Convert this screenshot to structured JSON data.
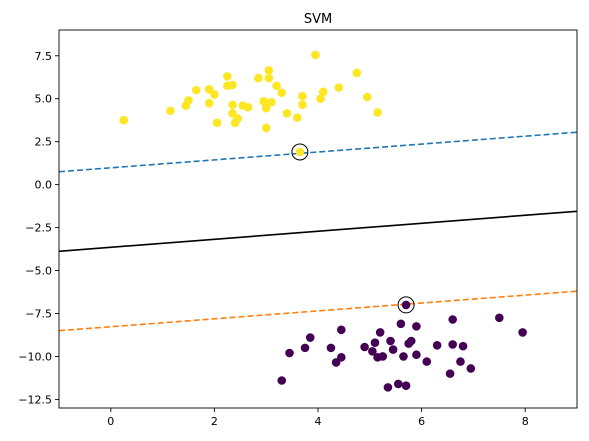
{
  "chart_data": {
    "type": "scatter",
    "title": "SVM",
    "xlabel": "",
    "ylabel": "",
    "xlim": [
      -1,
      9
    ],
    "ylim": [
      -13,
      9
    ],
    "xticks": [
      0,
      2,
      4,
      6,
      8
    ],
    "xtick_labels": [
      "0",
      "2",
      "4",
      "6",
      "8"
    ],
    "yticks": [
      -12.5,
      -10.0,
      -7.5,
      -5.0,
      -2.5,
      0.0,
      2.5,
      5.0,
      7.5
    ],
    "ytick_labels": [
      "−12.5",
      "−10.0",
      "−7.5",
      "−5.0",
      "−2.5",
      "0.0",
      "2.5",
      "5.0",
      "7.5"
    ],
    "grid": false,
    "series": [
      {
        "color": "#fde725",
        "points": [
          [
            0.25,
            3.75
          ],
          [
            1.15,
            4.3
          ],
          [
            1.45,
            4.6
          ],
          [
            1.5,
            4.9
          ],
          [
            1.65,
            5.5
          ],
          [
            1.9,
            4.75
          ],
          [
            1.9,
            5.55
          ],
          [
            2.0,
            5.25
          ],
          [
            2.05,
            3.6
          ],
          [
            2.25,
            5.75
          ],
          [
            2.25,
            6.3
          ],
          [
            2.35,
            5.8
          ],
          [
            2.35,
            4.65
          ],
          [
            2.35,
            4.15
          ],
          [
            2.4,
            3.6
          ],
          [
            2.45,
            3.85
          ],
          [
            2.55,
            4.6
          ],
          [
            2.65,
            4.5
          ],
          [
            2.85,
            6.2
          ],
          [
            2.95,
            4.85
          ],
          [
            3.0,
            4.45
          ],
          [
            3.0,
            3.3
          ],
          [
            3.05,
            6.2
          ],
          [
            3.05,
            6.65
          ],
          [
            3.1,
            4.8
          ],
          [
            3.2,
            5.75
          ],
          [
            3.3,
            5.35
          ],
          [
            3.4,
            4.15
          ],
          [
            3.6,
            3.9
          ],
          [
            3.7,
            4.65
          ],
          [
            3.7,
            5.15
          ],
          [
            3.95,
            7.55
          ],
          [
            4.05,
            5.0
          ],
          [
            4.1,
            5.4
          ],
          [
            4.4,
            5.65
          ],
          [
            4.75,
            6.5
          ],
          [
            4.95,
            5.1
          ],
          [
            5.15,
            4.2
          ],
          [
            3.65,
            1.9
          ]
        ]
      },
      {
        "color": "#440154",
        "points": [
          [
            3.3,
            -11.4
          ],
          [
            3.45,
            -9.8
          ],
          [
            3.75,
            -9.5
          ],
          [
            3.85,
            -8.9
          ],
          [
            4.25,
            -9.5
          ],
          [
            4.35,
            -10.35
          ],
          [
            4.45,
            -8.45
          ],
          [
            4.45,
            -10.05
          ],
          [
            4.9,
            -9.45
          ],
          [
            5.05,
            -9.7
          ],
          [
            5.1,
            -9.2
          ],
          [
            5.15,
            -10.05
          ],
          [
            5.2,
            -8.6
          ],
          [
            5.25,
            -10.0
          ],
          [
            5.35,
            -11.8
          ],
          [
            5.4,
            -9.1
          ],
          [
            5.45,
            -9.6
          ],
          [
            5.55,
            -11.6
          ],
          [
            5.6,
            -8.1
          ],
          [
            5.65,
            -10.0
          ],
          [
            5.7,
            -11.7
          ],
          [
            5.75,
            -9.25
          ],
          [
            5.8,
            -9.1
          ],
          [
            5.9,
            -8.25
          ],
          [
            5.9,
            -9.9
          ],
          [
            6.1,
            -10.3
          ],
          [
            6.3,
            -9.35
          ],
          [
            6.6,
            -7.85
          ],
          [
            6.6,
            -9.3
          ],
          [
            6.55,
            -11.0
          ],
          [
            6.75,
            -10.3
          ],
          [
            6.8,
            -9.4
          ],
          [
            6.95,
            -10.7
          ],
          [
            7.5,
            -7.75
          ],
          [
            7.95,
            -8.6
          ],
          [
            5.7,
            -7.0
          ]
        ]
      }
    ],
    "lines": [
      {
        "color": "#000000",
        "dash": "solid",
        "x": [
          -1,
          9
        ],
        "y": [
          -3.88,
          -1.55
        ]
      },
      {
        "color": "#1f77b4",
        "dash": "dashed",
        "x": [
          -1,
          9
        ],
        "y": [
          0.75,
          3.05
        ]
      },
      {
        "color": "#ff7f0e",
        "dash": "dashed",
        "x": [
          -1,
          9
        ],
        "y": [
          -8.5,
          -6.2
        ]
      }
    ],
    "support_vectors": [
      [
        3.65,
        1.9
      ],
      [
        5.7,
        -7.0
      ]
    ]
  }
}
